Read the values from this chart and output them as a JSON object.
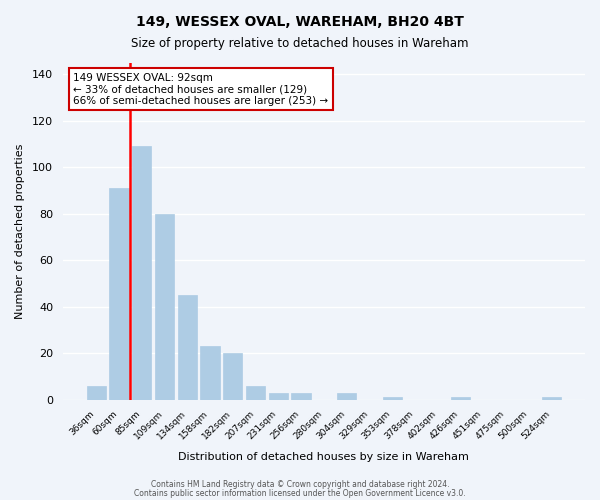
{
  "title1": "149, WESSEX OVAL, WAREHAM, BH20 4BT",
  "title2": "Size of property relative to detached houses in Wareham",
  "xlabel": "Distribution of detached houses by size in Wareham",
  "ylabel": "Number of detached properties",
  "bar_values": [
    6,
    91,
    109,
    80,
    45,
    23,
    20,
    6,
    3,
    3,
    0,
    3,
    0,
    1,
    0,
    0,
    1,
    0,
    0,
    0,
    1
  ],
  "x_labels": [
    "36sqm",
    "60sqm",
    "85sqm",
    "109sqm",
    "134sqm",
    "158sqm",
    "182sqm",
    "207sqm",
    "231sqm",
    "256sqm",
    "280sqm",
    "304sqm",
    "329sqm",
    "353sqm",
    "378sqm",
    "402sqm",
    "426sqm",
    "451sqm",
    "475sqm",
    "500sqm",
    "524sqm"
  ],
  "bar_color": "#aecce4",
  "bar_edge_color": "#aecce4",
  "background_color": "#f0f4fa",
  "grid_color": "#ffffff",
  "red_line_x": 1.5,
  "ylim": [
    0,
    145
  ],
  "yticks": [
    0,
    20,
    40,
    60,
    80,
    100,
    120,
    140
  ],
  "annotation_title": "149 WESSEX OVAL: 92sqm",
  "annotation_line1": "← 33% of detached houses are smaller (129)",
  "annotation_line2": "66% of semi-detached houses are larger (253) →",
  "annotation_box_color": "#ffffff",
  "annotation_box_edge": "#cc0000",
  "footer1": "Contains HM Land Registry data © Crown copyright and database right 2024.",
  "footer2": "Contains public sector information licensed under the Open Government Licence v3.0."
}
